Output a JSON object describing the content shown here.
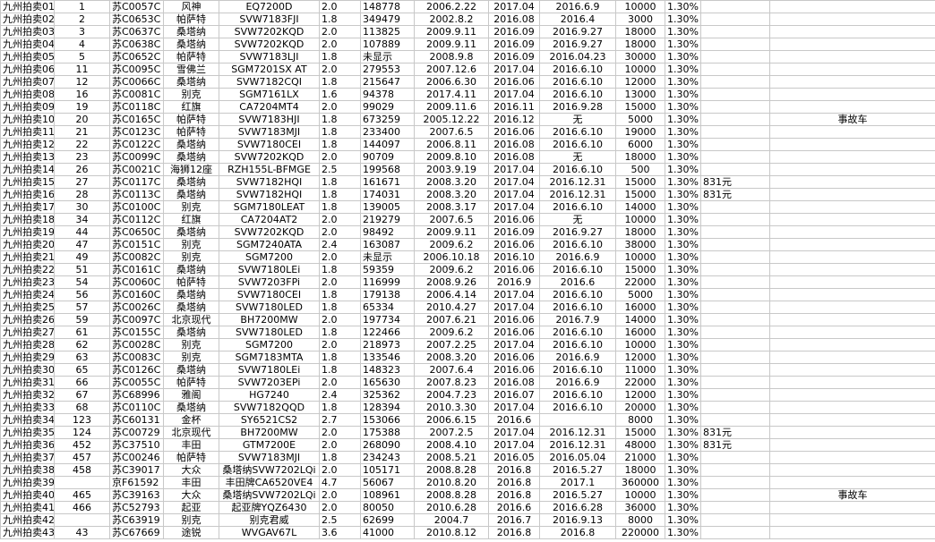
{
  "table": {
    "rows": [
      [
        "九州拍卖01",
        "1",
        "苏C0057C",
        "风神",
        "EQ7200D",
        "2.0",
        "148778",
        "2006.2.22",
        "2017.04",
        "2016.6.9",
        "10000",
        "1.30%",
        null,
        null
      ],
      [
        "九州拍卖02",
        "2",
        "苏C0653C",
        "帕萨特",
        "SVW7183FJI",
        "1.8",
        "349479",
        "2002.8.2",
        "2016.08",
        "2016.4",
        "3000",
        "1.30%",
        null,
        null
      ],
      [
        "九州拍卖03",
        "3",
        "苏C0637C",
        "桑塔纳",
        "SVW7202KQD",
        "2.0",
        "113825",
        "2009.9.11",
        "2016.09",
        "2016.9.27",
        "18000",
        "1.30%",
        null,
        null
      ],
      [
        "九州拍卖04",
        "4",
        "苏C0638C",
        "桑塔纳",
        "SVW7202KQD",
        "2.0",
        "107889",
        "2009.9.11",
        "2016.09",
        "2016.9.27",
        "18000",
        "1.30%",
        null,
        null
      ],
      [
        "九州拍卖05",
        "5",
        "苏C0652C",
        "帕萨特",
        "SVW7183LJI",
        "1.8",
        "未显示",
        "2008.9.8",
        "2016.09",
        "2016.04.23",
        "30000",
        "1.30%",
        null,
        null
      ],
      [
        "九州拍卖06",
        "11",
        "苏C0095C",
        "雪佛兰",
        "SGM7201SX AT",
        "2.0",
        "279553",
        "2007.12.6",
        "2017.04",
        "2016.6.10",
        "10000",
        "1.30%",
        null,
        null
      ],
      [
        "九州拍卖07",
        "12",
        "苏C0066C",
        "桑塔纳",
        "SVW7182CQI",
        "1.8",
        "215647",
        "2006.6.30",
        "2016.06",
        "2016.6.10",
        "12000",
        "1.30%",
        null,
        null
      ],
      [
        "九州拍卖08",
        "16",
        "苏C0081C",
        "别克",
        "SGM7161LX",
        "1.6",
        "94378",
        "2017.4.11",
        "2017.04",
        "2016.6.10",
        "13000",
        "1.30%",
        null,
        null
      ],
      [
        "九州拍卖09",
        "19",
        "苏C0118C",
        "红旗",
        "CA7204MT4",
        "2.0",
        "99029",
        "2009.11.6",
        "2016.11",
        "2016.9.28",
        "15000",
        "1.30%",
        null,
        null
      ],
      [
        "九州拍卖10",
        "20",
        "苏C0165C",
        "帕萨特",
        "SVW7183HJI",
        "1.8",
        "673259",
        "2005.12.22",
        "2016.12",
        "无",
        "5000",
        "1.30%",
        null,
        "事故车"
      ],
      [
        "九州拍卖11",
        "21",
        "苏C0123C",
        "帕萨特",
        "SVW7183MJI",
        "1.8",
        "233400",
        "2007.6.5",
        "2016.06",
        "2016.6.10",
        "19000",
        "1.30%",
        null,
        null
      ],
      [
        "九州拍卖12",
        "22",
        "苏C0122C",
        "桑塔纳",
        "SVW7180CEI",
        "1.8",
        "144097",
        "2006.8.11",
        "2016.08",
        "2016.6.10",
        "6000",
        "1.30%",
        null,
        null
      ],
      [
        "九州拍卖13",
        "23",
        "苏C0099C",
        "桑塔纳",
        "SVW7202KQD",
        "2.0",
        "90709",
        "2009.8.10",
        "2016.08",
        "无",
        "18000",
        "1.30%",
        null,
        null
      ],
      [
        "九州拍卖14",
        "26",
        "苏C0021C",
        "海狮12座",
        "RZH155L-BFMGE",
        "2.5",
        "199568",
        "2003.9.19",
        "2017.04",
        "2016.6.10",
        "500",
        "1.30%",
        null,
        null
      ],
      [
        "九州拍卖15",
        "27",
        "苏C0117C",
        "桑塔纳",
        "SVW7182HQI",
        "1.8",
        "161671",
        "2008.3.20",
        "2017.04",
        "2016.12.31",
        "15000",
        "1.30%",
        "831元",
        null
      ],
      [
        "九州拍卖16",
        "28",
        "苏C0113C",
        "桑塔纳",
        "SVW7182HQI",
        "1.8",
        "174031",
        "2008.3.20",
        "2017.04",
        "2016.12.31",
        "15000",
        "1.30%",
        "831元",
        null
      ],
      [
        "九州拍卖17",
        "30",
        "苏C0100C",
        "别克",
        "SGM7180LEAT",
        "1.8",
        "139005",
        "2008.3.17",
        "2017.04",
        "2016.6.10",
        "14000",
        "1.30%",
        null,
        null
      ],
      [
        "九州拍卖18",
        "34",
        "苏C0112C",
        "红旗",
        "CA7204AT2",
        "2.0",
        "219279",
        "2007.6.5",
        "2016.06",
        "无",
        "10000",
        "1.30%",
        null,
        null
      ],
      [
        "九州拍卖19",
        "44",
        "苏C0650C",
        "桑塔纳",
        "SVW7202KQD",
        "2.0",
        "98492",
        "2009.9.11",
        "2016.09",
        "2016.9.27",
        "18000",
        "1.30%",
        null,
        null
      ],
      [
        "九州拍卖20",
        "47",
        "苏C0151C",
        "别克",
        "SGM7240ATA",
        "2.4",
        "163087",
        "2009.6.2",
        "2016.06",
        "2016.6.10",
        "38000",
        "1.30%",
        null,
        null
      ],
      [
        "九州拍卖21",
        "49",
        "苏C0082C",
        "别克",
        "SGM7200",
        "2.0",
        "未显示",
        "2006.10.18",
        "2016.10",
        "2016.6.9",
        "10000",
        "1.30%",
        null,
        null
      ],
      [
        "九州拍卖22",
        "51",
        "苏C0161C",
        "桑塔纳",
        "SVW7180LEi",
        "1.8",
        "59359",
        "2009.6.2",
        "2016.06",
        "2016.6.10",
        "15000",
        "1.30%",
        null,
        null
      ],
      [
        "九州拍卖23",
        "54",
        "苏C0060C",
        "帕萨特",
        "SVW7203FPi",
        "2.0",
        "116999",
        "2008.9.26",
        "2016.9",
        "2016.6",
        "22000",
        "1.30%",
        null,
        null
      ],
      [
        "九州拍卖24",
        "56",
        "苏C0160C",
        "桑塔纳",
        "SVW7180CEI",
        "1.8",
        "179138",
        "2006.4.14",
        "2017.04",
        "2016.6.10",
        "5000",
        "1.30%",
        null,
        null
      ],
      [
        "九州拍卖25",
        "57",
        "苏C0026C",
        "桑塔纳",
        "SVW7180LED",
        "1.8",
        "65334",
        "2010.4.27",
        "2017.04",
        "2016.6.10",
        "16000",
        "1.30%",
        null,
        null
      ],
      [
        "九州拍卖26",
        "59",
        "苏C0097C",
        "北京现代",
        "BH7200MW",
        "2.0",
        "197734",
        "2007.6.21",
        "2016.06",
        "2016.7.9",
        "14000",
        "1.30%",
        null,
        null
      ],
      [
        "九州拍卖27",
        "61",
        "苏C0155C",
        "桑塔纳",
        "SVW7180LED",
        "1.8",
        "122466",
        "2009.6.2",
        "2016.06",
        "2016.6.10",
        "16000",
        "1.30%",
        null,
        null
      ],
      [
        "九州拍卖28",
        "62",
        "苏C0028C",
        "别克",
        "SGM7200",
        "2.0",
        "218973",
        "2007.2.25",
        "2017.04",
        "2016.6.10",
        "10000",
        "1.30%",
        null,
        null
      ],
      [
        "九州拍卖29",
        "63",
        "苏C0083C",
        "别克",
        "SGM7183MTA",
        "1.8",
        "133546",
        "2008.3.20",
        "2016.06",
        "2016.6.9",
        "12000",
        "1.30%",
        null,
        null
      ],
      [
        "九州拍卖30",
        "65",
        "苏C0126C",
        "桑塔纳",
        "SVW7180LEi",
        "1.8",
        "148323",
        "2007.6.4",
        "2016.06",
        "2016.6.10",
        "11000",
        "1.30%",
        null,
        null
      ],
      [
        "九州拍卖31",
        "66",
        "苏C0055C",
        "帕萨特",
        "SVW7203EPi",
        "2.0",
        "165630",
        "2007.8.23",
        "2016.08",
        "2016.6.9",
        "22000",
        "1.30%",
        null,
        null
      ],
      [
        "九州拍卖32",
        "67",
        "苏C68996",
        "雅阁",
        "HG7240",
        "2.4",
        "325362",
        "2004.7.23",
        "2016.07",
        "2016.6.10",
        "12000",
        "1.30%",
        null,
        null
      ],
      [
        "九州拍卖33",
        "68",
        "苏C0110C",
        "桑塔纳",
        "SVW7182QQD",
        "1.8",
        "128394",
        "2010.3.30",
        "2017.04",
        "2016.6.10",
        "20000",
        "1.30%",
        null,
        null
      ],
      [
        "九州拍卖34",
        "123",
        "苏C60131",
        "金杯",
        "SY6521CS2",
        "2.7",
        "153066",
        "2006.6.15",
        "2016.6",
        null,
        "8000",
        "1.30%",
        null,
        null
      ],
      [
        "九州拍卖35",
        "124",
        "苏C00729",
        "北京现代",
        "BH7200MW",
        "2.0",
        "175388",
        "2007.2.5",
        "2017.04",
        "2016.12.31",
        "15000",
        "1.30%",
        "831元",
        null
      ],
      [
        "九州拍卖36",
        "452",
        "苏C37510",
        "丰田",
        "GTM7200E",
        "2.0",
        "268090",
        "2008.4.10",
        "2017.04",
        "2016.12.31",
        "48000",
        "1.30%",
        "831元",
        null
      ],
      [
        "九州拍卖37",
        "457",
        "苏C00246",
        "帕萨特",
        "SVW7183MJI",
        "1.8",
        "234243",
        "2008.5.21",
        "2016.05",
        "2016.05.04",
        "21000",
        "1.30%",
        null,
        null
      ],
      [
        "九州拍卖38",
        "458",
        "苏C39017",
        "大众",
        "桑塔纳SVW7202LQi",
        "2.0",
        "105171",
        "2008.8.28",
        "2016.8",
        "2016.5.27",
        "18000",
        "1.30%",
        null,
        null
      ],
      [
        "九州拍卖39",
        null,
        "京F61592",
        "丰田",
        "丰田牌CA6520VE4",
        "4.7",
        "56067",
        "2010.8.20",
        "2016.8",
        "2017.1",
        "360000",
        "1.30%",
        null,
        null
      ],
      [
        "九州拍卖40",
        "465",
        "苏C39163",
        "大众",
        "桑塔纳SVW7202LQi",
        "2.0",
        "108961",
        "2008.8.28",
        "2016.8",
        "2016.5.27",
        "10000",
        "1.30%",
        null,
        "事故车"
      ],
      [
        "九州拍卖41",
        "466",
        "苏C52793",
        "起亚",
        "起亚牌YQZ6430",
        "2.0",
        "80050",
        "2010.6.28",
        "2016.6",
        "2016.6.28",
        "36000",
        "1.30%",
        null,
        null
      ],
      [
        "九州拍卖42",
        null,
        "苏C63919",
        "别克",
        "别克君威",
        "2.5",
        "62699",
        "2004.7",
        "2016.7",
        "2016.9.13",
        "8000",
        "1.30%",
        null,
        null
      ],
      [
        "九州拍卖43",
        "43",
        "苏C67669",
        "途锐",
        "WVGAV67L",
        "3.6",
        "41000",
        "2010.8.12",
        "2016.8",
        "2016.8",
        "220000",
        "1.30%",
        null,
        null
      ]
    ]
  }
}
